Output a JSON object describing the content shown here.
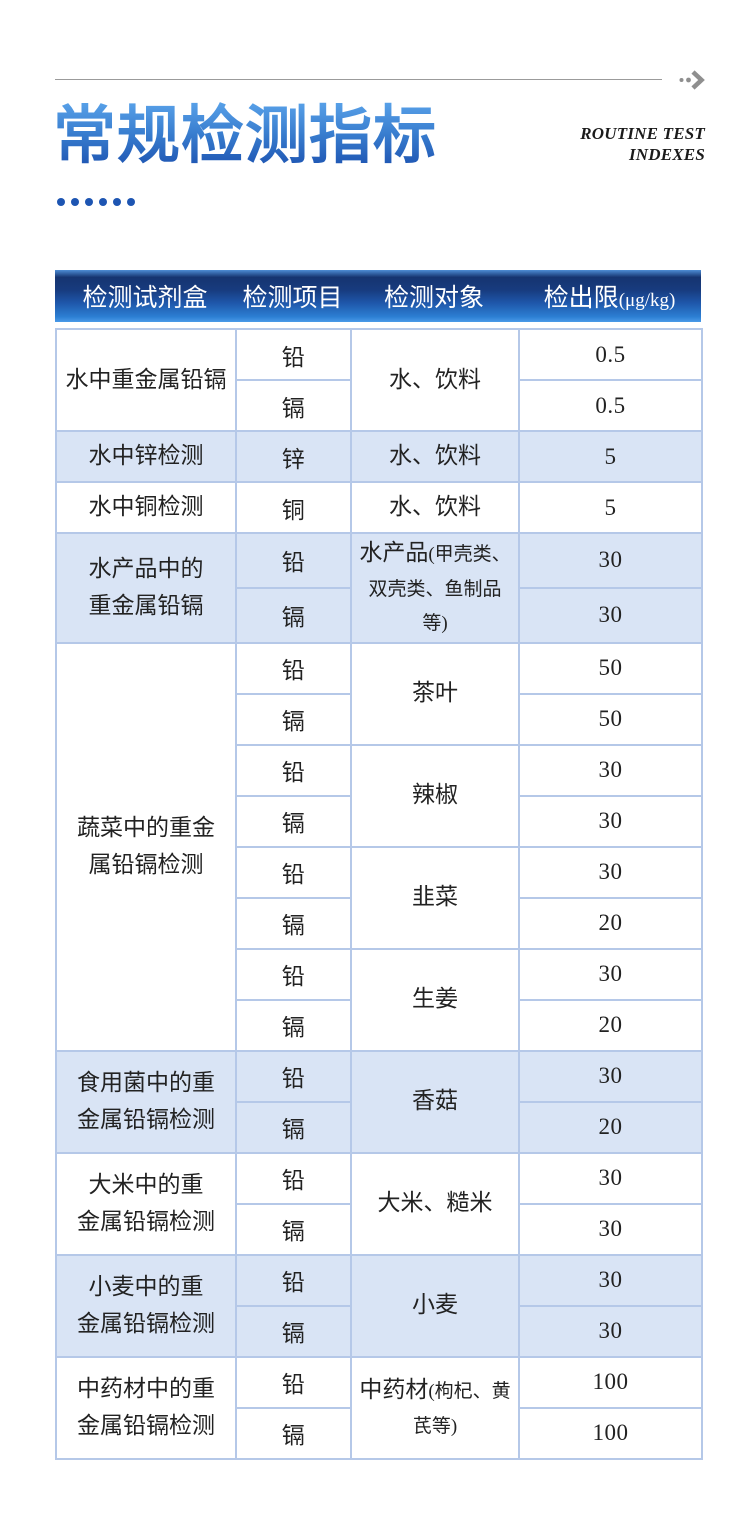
{
  "header": {
    "title": "常规检测指标",
    "subtitle_line1": "ROUTINE TEST",
    "subtitle_line2": "INDEXES"
  },
  "icons": {
    "arrow": "chevron-right-with-dots"
  },
  "colors": {
    "title_gradient_top": "#5aa3ea",
    "title_gradient_bottom": "#1a4fae",
    "table_header_dark": "#163470",
    "table_header_bright": "#2c7fd3",
    "row_shaded_bg": "#d9e4f5",
    "border": "#b5c8e8",
    "accent_dot": "#1d55b2"
  },
  "table": {
    "headers": [
      {
        "label": "检测试剂盒",
        "unit": ""
      },
      {
        "label": "检测项目",
        "unit": ""
      },
      {
        "label": "检测对象",
        "unit": ""
      },
      {
        "label": "检出限",
        "unit": "(μg/kg)"
      }
    ],
    "groups": [
      {
        "kit": "水中重金属铅镉",
        "shaded": false,
        "objects": [
          {
            "name": "水、饮料",
            "note": "",
            "rows": [
              [
                "铅",
                "0.5"
              ],
              [
                "镉",
                "0.5"
              ]
            ]
          }
        ]
      },
      {
        "kit": "水中锌检测",
        "shaded": true,
        "objects": [
          {
            "name": "水、饮料",
            "note": "",
            "rows": [
              [
                "锌",
                "5"
              ]
            ]
          }
        ]
      },
      {
        "kit": "水中铜检测",
        "shaded": false,
        "objects": [
          {
            "name": "水、饮料",
            "note": "",
            "rows": [
              [
                "铜",
                "5"
              ]
            ]
          }
        ]
      },
      {
        "kit": "水产品中的\n重金属铅镉",
        "shaded": true,
        "objects": [
          {
            "name": "水产品",
            "note": "(甲壳类、双壳类、鱼制品等)",
            "rows": [
              [
                "铅",
                "30"
              ],
              [
                "镉",
                "30"
              ]
            ]
          }
        ]
      },
      {
        "kit": "蔬菜中的重金\n属铅镉检测",
        "shaded": false,
        "objects": [
          {
            "name": "茶叶",
            "note": "",
            "rows": [
              [
                "铅",
                "50"
              ],
              [
                "镉",
                "50"
              ]
            ]
          },
          {
            "name": "辣椒",
            "note": "",
            "rows": [
              [
                "铅",
                "30"
              ],
              [
                "镉",
                "30"
              ]
            ]
          },
          {
            "name": "韭菜",
            "note": "",
            "rows": [
              [
                "铅",
                "30"
              ],
              [
                "镉",
                "20"
              ]
            ]
          },
          {
            "name": "生姜",
            "note": "",
            "rows": [
              [
                "铅",
                "30"
              ],
              [
                "镉",
                "20"
              ]
            ]
          }
        ]
      },
      {
        "kit": "食用菌中的重\n金属铅镉检测",
        "shaded": true,
        "objects": [
          {
            "name": "香菇",
            "note": "",
            "rows": [
              [
                "铅",
                "30"
              ],
              [
                "镉",
                "20"
              ]
            ]
          }
        ]
      },
      {
        "kit": "大米中的重\n金属铅镉检测",
        "shaded": false,
        "objects": [
          {
            "name": "大米、糙米",
            "note": "",
            "rows": [
              [
                "铅",
                "30"
              ],
              [
                "镉",
                "30"
              ]
            ]
          }
        ]
      },
      {
        "kit": "小麦中的重\n金属铅镉检测",
        "shaded": true,
        "objects": [
          {
            "name": "小麦",
            "note": "",
            "rows": [
              [
                "铅",
                "30"
              ],
              [
                "镉",
                "30"
              ]
            ]
          }
        ]
      },
      {
        "kit": "中药材中的重\n金属铅镉检测",
        "shaded": false,
        "objects": [
          {
            "name": "中药材",
            "note": "(枸杞、黄芪等)",
            "rows": [
              [
                "铅",
                "100"
              ],
              [
                "镉",
                "100"
              ]
            ]
          }
        ]
      }
    ]
  }
}
